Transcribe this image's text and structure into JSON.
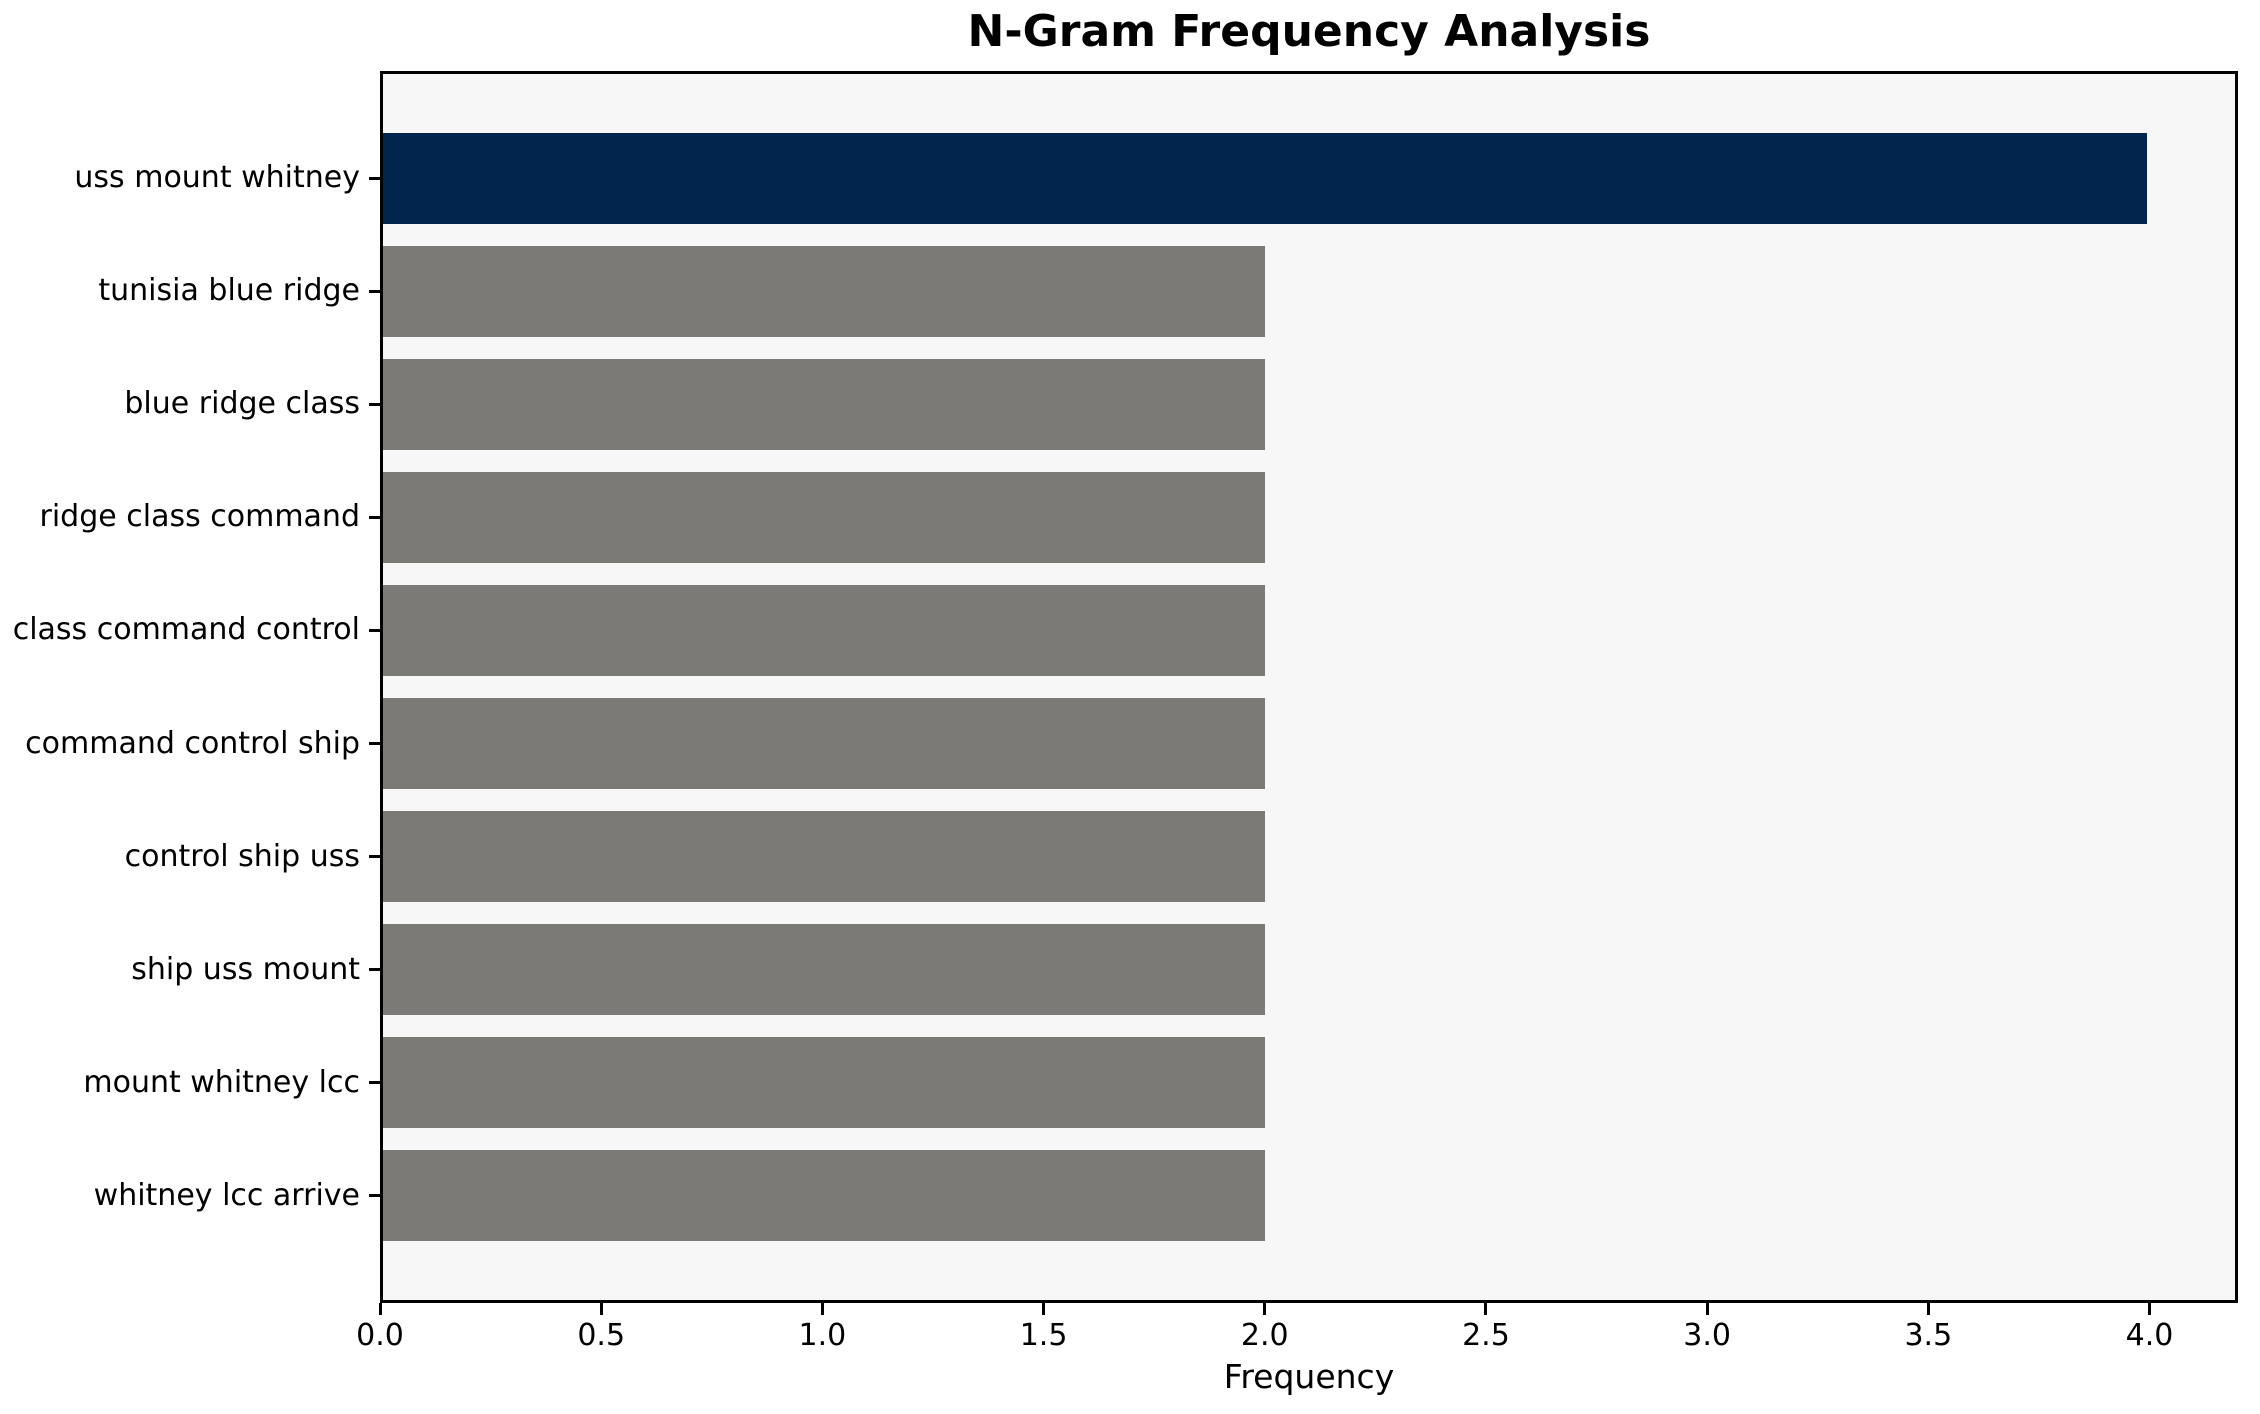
{
  "chart_data": {
    "type": "bar",
    "orientation": "horizontal",
    "title": "N-Gram Frequency Analysis",
    "xlabel": "Frequency",
    "ylabel": "",
    "categories": [
      "uss mount whitney",
      "tunisia blue ridge",
      "blue ridge class",
      "ridge class command",
      "class command control",
      "command control ship",
      "control ship uss",
      "ship uss mount",
      "mount whitney lcc",
      "whitney lcc arrive"
    ],
    "values": [
      4,
      2,
      2,
      2,
      2,
      2,
      2,
      2,
      2,
      2
    ],
    "x_tick_labels": [
      "0.0",
      "0.5",
      "1.0",
      "1.5",
      "2.0",
      "2.5",
      "3.0",
      "3.5",
      "4.0"
    ],
    "x_tick_values": [
      0,
      0.5,
      1,
      1.5,
      2,
      2.5,
      3,
      3.5,
      4
    ],
    "xlim": [
      0,
      4.2
    ],
    "grid": false,
    "legend": "none",
    "colors": {
      "highlight_bar": "#02254e",
      "default_bar": "#7b7a77",
      "plot_background": "#f7f7f7",
      "figure_background": "#ffffff",
      "spine": "#000000",
      "text": "#000000"
    },
    "highlight_index": 0
  }
}
